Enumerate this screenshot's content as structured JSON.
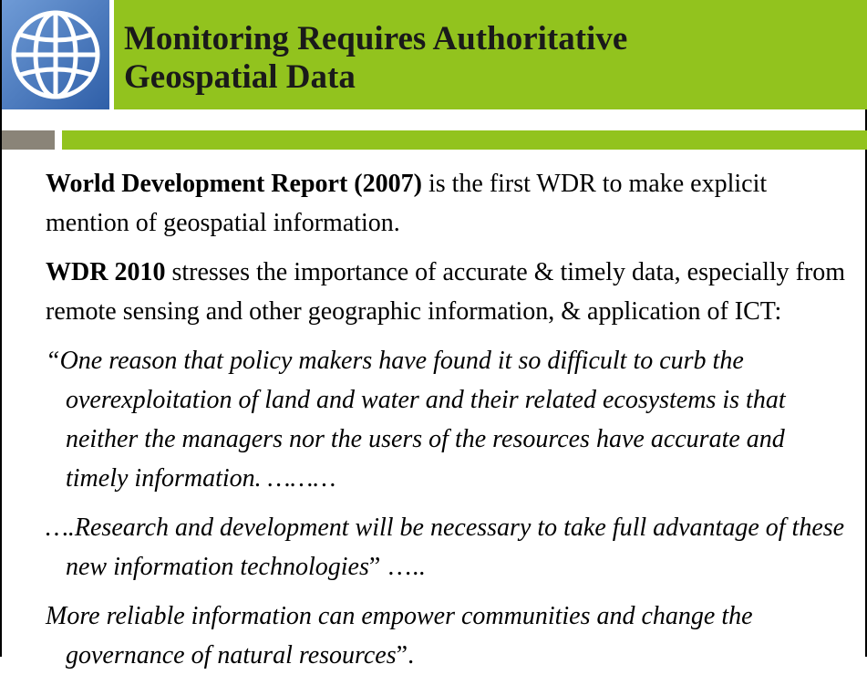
{
  "header": {
    "title": "Monitoring Requires Authoritative Geospatial Data"
  },
  "body": {
    "paragraphs": [
      {
        "bold": "World Development Report (2007)",
        "rest": " is the first WDR to make explicit mention of geospatial information."
      },
      {
        "bold": "WDR 2010",
        "rest": " stresses the importance of accurate & timely data, especially from remote sensing and other geographic information, & application of  ICT:"
      }
    ],
    "quotes": [
      {
        "italic": "“One reason that policy makers have found it so difficult to curb the overexploitation of land and water and their related ecosystems is that neither the managers nor the users of the resources have accurate and timely information.  ………",
        "rest": ""
      },
      {
        "italic": "….Research and development will be necessary to take full advantage of these new information technologies",
        "rest": "” ….."
      },
      {
        "italic": " More reliable information can empower communities and change the governance of natural resources",
        "rest": "”."
      }
    ]
  }
}
